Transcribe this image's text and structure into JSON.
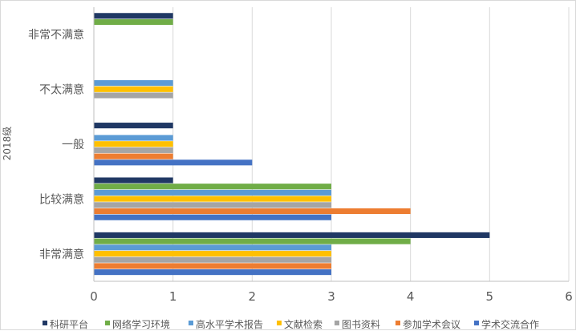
{
  "chart_data": {
    "type": "bar",
    "orientation": "horizontal",
    "group_label": "2018级",
    "categories": [
      "非常满意",
      "比较满意",
      "一般",
      "不太满意",
      "非常不满意"
    ],
    "xlim": [
      0,
      6
    ],
    "xticks": [
      "0",
      "1",
      "2",
      "3",
      "4",
      "5",
      "6"
    ],
    "grid": true,
    "legend_position": "bottom",
    "series": [
      {
        "name": "科研平台",
        "color": "#203864",
        "values": [
          5,
          1,
          1,
          0,
          1
        ]
      },
      {
        "name": "网络学习环境",
        "color": "#70ad47",
        "values": [
          4,
          3,
          0,
          0,
          1
        ]
      },
      {
        "name": "高水平学术报告",
        "color": "#5b9bd5",
        "values": [
          3,
          3,
          1,
          1,
          0
        ]
      },
      {
        "name": "文献检索",
        "color": "#ffc000",
        "values": [
          3,
          3,
          1,
          1,
          0
        ]
      },
      {
        "name": "图书资料",
        "color": "#a5a5a5",
        "values": [
          3,
          3,
          1,
          1,
          0
        ]
      },
      {
        "name": "参加学术会议",
        "color": "#ed7d31",
        "values": [
          3,
          4,
          1,
          0,
          0
        ]
      },
      {
        "name": "学术交流合作",
        "color": "#4472c4",
        "values": [
          3,
          3,
          2,
          0,
          0
        ]
      }
    ]
  }
}
